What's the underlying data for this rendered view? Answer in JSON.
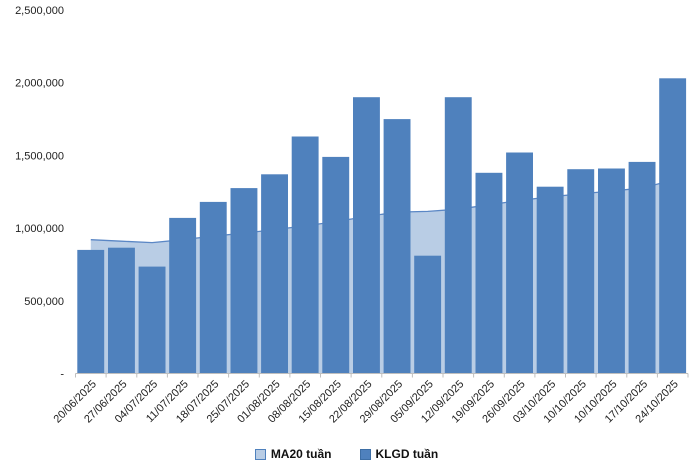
{
  "chart_data": {
    "type": "bar",
    "title": "",
    "xlabel": "",
    "ylabel": "",
    "ylim": [
      0,
      2500000
    ],
    "grid": false,
    "legend_position": "bottom",
    "categories": [
      "20/06/2025",
      "27/06/2025",
      "04/07/2025",
      "11/07/2025",
      "18/07/2025",
      "25/07/2025",
      "01/08/2025",
      "08/08/2025",
      "15/08/2025",
      "22/08/2025",
      "29/08/2025",
      "05/09/2025",
      "12/09/2025",
      "19/09/2025",
      "26/09/2025",
      "03/10/2025",
      "10/10/2025",
      "10/10/2025",
      "17/10/2025",
      "24/10/2025"
    ],
    "series": [
      {
        "name": "MA20 tuần",
        "type": "area",
        "color": "#B9CDE5",
        "line_color": "#5B87C5",
        "values": [
          920000,
          910000,
          900000,
          920000,
          945000,
          965000,
          990000,
          1015000,
          1045000,
          1080000,
          1110000,
          1115000,
          1130000,
          1160000,
          1190000,
          1215000,
          1235000,
          1255000,
          1275000,
          1330000
        ]
      },
      {
        "name": "KLGD tuần",
        "type": "bar",
        "color": "#4F81BD",
        "values": [
          850000,
          865000,
          735000,
          1070000,
          1180000,
          1275000,
          1370000,
          1630000,
          1490000,
          1900000,
          1750000,
          810000,
          1900000,
          1380000,
          1520000,
          1285000,
          1405000,
          1410000,
          1455000,
          2030000
        ]
      }
    ],
    "y_ticks": [
      {
        "value": 2500000,
        "label": "2,500,000"
      },
      {
        "value": 2000000,
        "label": "2,000,000"
      },
      {
        "value": 1500000,
        "label": "1,500,000"
      },
      {
        "value": 1000000,
        "label": "1,000,000"
      },
      {
        "value": 500000,
        "label": "500,000"
      },
      {
        "value": 0,
        "label": "-"
      }
    ],
    "axis_color": "#BFBFBF",
    "label_color": "#222222"
  }
}
